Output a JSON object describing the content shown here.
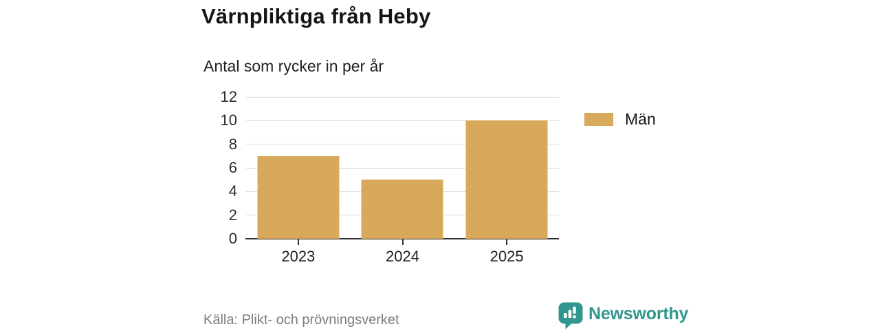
{
  "header": {
    "title": "Värnpliktiga från Heby",
    "subtitle": "Antal som rycker in per år"
  },
  "chart_data": {
    "type": "bar",
    "categories": [
      "2023",
      "2024",
      "2025"
    ],
    "series": [
      {
        "name": "Män",
        "color": "#d9a95b",
        "values": [
          7,
          5,
          10
        ]
      }
    ],
    "title": "Värnpliktiga från Heby",
    "subtitle": "Antal som rycker in per år",
    "xlabel": "",
    "ylabel": "",
    "ylim": [
      0,
      12
    ],
    "yticks": [
      0,
      2,
      4,
      6,
      8,
      10,
      12
    ],
    "grid": true,
    "legend_position": "right"
  },
  "legend": {
    "items": [
      {
        "label": "Män",
        "color": "#d9a95b"
      }
    ]
  },
  "footer": {
    "source": "Källa: Plikt- och prövningsverket",
    "brand": "Newsworthy"
  },
  "colors": {
    "bar": "#d9a95b",
    "grid": "#dcdcdc",
    "axis": "#2e2e2e",
    "brand_teal": "#31978e",
    "source_gray": "#7d7d7d"
  },
  "icons": {
    "logo": "newsworthy-speech-bubble-chart-icon"
  }
}
